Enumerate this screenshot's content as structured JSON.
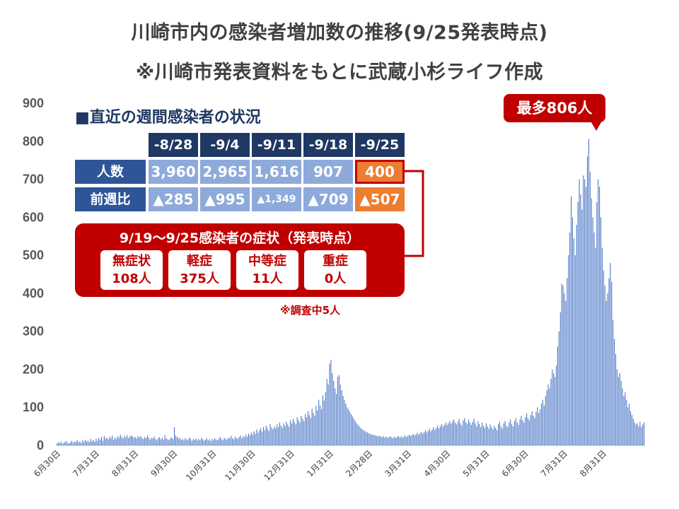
{
  "title_line1": "川崎市内の感染者増加数の推移(9/25発表時点)",
  "title_line2": "※川崎市発表資料をもとに武蔵小杉ライフ作成",
  "colors": {
    "bars": "#4472c4",
    "header": "#1f3864",
    "row_label": "#2e5597",
    "cell": "#8eaadb",
    "highlight": "#ed7d31",
    "alert": "#c00000"
  },
  "weekly_table": {
    "heading": "■直近の週間感染者の状況",
    "weeks": [
      "-8/28",
      "-9/4",
      "-9/11",
      "-9/18",
      "-9/25"
    ],
    "row_labels": [
      "人数",
      "前週比"
    ],
    "counts": [
      "3,960",
      "2,965",
      "1,616",
      "907",
      "400"
    ],
    "changes": [
      "▲285",
      "▲995",
      "▲1,349",
      "▲709",
      "▲507"
    ]
  },
  "symptoms": {
    "title": "9/19〜9/25感染者の症状（発表時点）",
    "items": [
      {
        "label": "無症状",
        "value": "108人"
      },
      {
        "label": "軽症",
        "value": "375人"
      },
      {
        "label": "中等症",
        "value": "11人"
      },
      {
        "label": "重症",
        "value": "0人"
      }
    ],
    "note": "※調査中5人"
  },
  "callout": "最多806人",
  "chart_data": {
    "type": "bar",
    "title": "川崎市内の感染者増加数の推移(9/25発表時点)",
    "xlabel": "",
    "ylabel": "",
    "ylim": [
      0,
      900
    ],
    "yticks": [
      "0",
      "100",
      "200",
      "300",
      "400",
      "500",
      "600",
      "700",
      "800",
      "900"
    ],
    "grid": false,
    "x_tick_labels": [
      "6月30日",
      "7月31日",
      "8月31日",
      "9月30日",
      "10月31日",
      "11月30日",
      "12月31日",
      "1月31日",
      "2月28日",
      "3月31日",
      "4月30日",
      "5月31日",
      "6月30日",
      "7月31日",
      "8月31日"
    ],
    "peak": {
      "value": 806,
      "label": "最多806人"
    },
    "series": [
      {
        "values": [
          5,
          8,
          6,
          10,
          4,
          7,
          9,
          11,
          5,
          6,
          8,
          12,
          7,
          9,
          10,
          14,
          8,
          11,
          6,
          13,
          9,
          15,
          10,
          12,
          8,
          17,
          11,
          14,
          9,
          18,
          12,
          20,
          15,
          22,
          13,
          25,
          18,
          20,
          16,
          23,
          19,
          26,
          15,
          21,
          17,
          24,
          20,
          28,
          22,
          18,
          25,
          21,
          27,
          19,
          23,
          26,
          24,
          20,
          22,
          18,
          25,
          21,
          24,
          20,
          17,
          22,
          19,
          26,
          21,
          15,
          20,
          18,
          23,
          17,
          14,
          19,
          22,
          16,
          20,
          15,
          27,
          18,
          16,
          14,
          19,
          21,
          17,
          48,
          26,
          22,
          18,
          20,
          15,
          17,
          13,
          19,
          16,
          14,
          21,
          17,
          12,
          16,
          15,
          18,
          13,
          17,
          14,
          20,
          16,
          12,
          15,
          18,
          13,
          16,
          11,
          17,
          14,
          19,
          15,
          13,
          18,
          22,
          16,
          14,
          20,
          17,
          15,
          21,
          18,
          25,
          19,
          16,
          23,
          20,
          17,
          22,
          26,
          19,
          24,
          21,
          28,
          23,
          31,
          26,
          34,
          28,
          37,
          30,
          42,
          33,
          39,
          45,
          36,
          48,
          40,
          52,
          44,
          38,
          56,
          47,
          42,
          50,
          45,
          55,
          48,
          60,
          52,
          46,
          58,
          51,
          62,
          55,
          49,
          66,
          58,
          70,
          62,
          55,
          74,
          66,
          60,
          78,
          70,
          64,
          82,
          74,
          90,
          80,
          72,
          96,
          85,
          78,
          104,
          92,
          120,
          105,
          95,
          132,
          118,
          140,
          175,
          160,
          215,
          225,
          190,
          170,
          150,
          135,
          180,
          185,
          160,
          145,
          130,
          120,
          110,
          100,
          95,
          88,
          82,
          76,
          70,
          64,
          58,
          54,
          50,
          46,
          43,
          40,
          38,
          36,
          34,
          32,
          30,
          29,
          28,
          27,
          26,
          25,
          24,
          25,
          23,
          22,
          24,
          21,
          23,
          20,
          22,
          24,
          21,
          19,
          23,
          20,
          22,
          25,
          21,
          24,
          20,
          23,
          26,
          22,
          25,
          28,
          24,
          27,
          30,
          26,
          29,
          33,
          28,
          32,
          36,
          31,
          35,
          40,
          34,
          38,
          44,
          37,
          42,
          48,
          41,
          46,
          52,
          45,
          50,
          56,
          49,
          54,
          60,
          53,
          58,
          64,
          57,
          62,
          68,
          60,
          55,
          63,
          70,
          58,
          52,
          66,
          72,
          61,
          56,
          68,
          60,
          54,
          62,
          70,
          58,
          50,
          64,
          56,
          48,
          60,
          52,
          46,
          58,
          50,
          44,
          55,
          48,
          42,
          52,
          46,
          40,
          56,
          62,
          50,
          44,
          58,
          64,
          52,
          48,
          60,
          68,
          56,
          50,
          64,
          72,
          60,
          54,
          68,
          78,
          66,
          60,
          74,
          84,
          72,
          66,
          80,
          90,
          78,
          72,
          88,
          100,
          85,
          95,
          110,
          120,
          105,
          130,
          145,
          160,
          150,
          175,
          200,
          190,
          180,
          210,
          260,
          300,
          350,
          425,
          420,
          400,
          380,
          440,
          500,
          560,
          655,
          600,
          545,
          500,
          580,
          640,
          700,
          660,
          620,
          710,
          700,
          680,
          760,
          806,
          720,
          650,
          600,
          560,
          520,
          640,
          700,
          680,
          600,
          520,
          460,
          420,
          380,
          400,
          440,
          480,
          430,
          330,
          280,
          240,
          200,
          180,
          190,
          170,
          150,
          130,
          140,
          120,
          100,
          110,
          90,
          80,
          70,
          60,
          55,
          58,
          50,
          62,
          48,
          55,
          60
        ]
      }
    ]
  }
}
